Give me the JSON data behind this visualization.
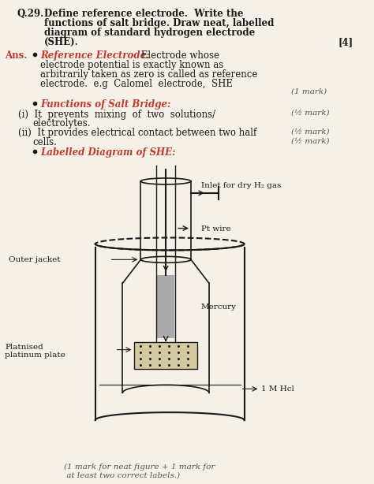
{
  "bg_color": "#f5f0e8",
  "question_text": "Q.29. Define reference electrode.  Write the\n      functions of salt bridge. Draw neat, labelled\n      diagram of standard hydrogen electrode\n      (SHE).",
  "marks": "[4]",
  "ans_label": "Ans.",
  "bullet1_title": "Reference Electrode:",
  "bullet1_body": " Electrode whose\nelectrode potential is exactly known as\narbitrarily taken as zero is called as reference\nelectrode.  e.g  Calomel  electrode,  SHE",
  "mark1": "(1 mark)",
  "bullet2_title": "Functions of Salt Bridge:",
  "item_i": "(i)  It  prevents  mixing  of  two  solutions/\n      electrolytes.",
  "mark_i": "(½ mark)",
  "item_ii": "(ii)  It provides electrical contact between two half\n       cells.",
  "mark_ii": "(½ mark)",
  "bullet3_title": "Labelled Diagram of SHE:",
  "label_outer": "Outer jacket",
  "label_inlet": "Inlet for dry H₂ gas",
  "label_pt": "Pt wire",
  "label_mercury": "Mercury",
  "label_platnised": "Platnised\nplatinum plate",
  "label_hcl": "1 M Hcl",
  "footer": "(1 mark for neat figure + 1 mark for\n at least two correct labels.)",
  "red_color": "#c0392b",
  "black_color": "#1a1a1a",
  "gray_color": "#555555",
  "italic_red": "#c0392b"
}
